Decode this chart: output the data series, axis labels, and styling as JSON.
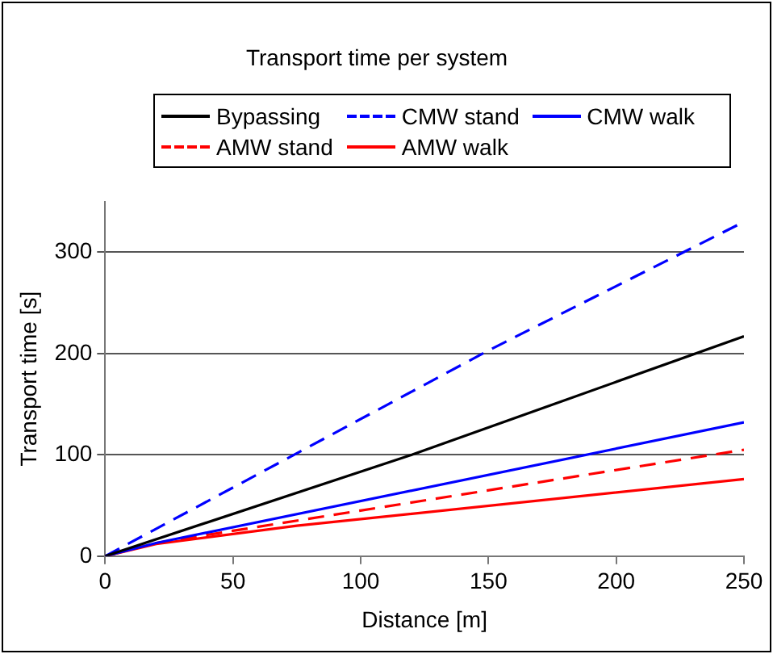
{
  "chart_data": {
    "type": "line",
    "title": "Transport time per system",
    "xlabel": "Distance [m]",
    "ylabel": "Transport time [s]",
    "xlim": [
      0,
      250
    ],
    "xticks": [
      0,
      50,
      100,
      150,
      200,
      250
    ],
    "ylim": [
      0,
      350
    ],
    "yticks": [
      0,
      100,
      200,
      300
    ],
    "grid": "y",
    "legend": "top",
    "marker": "none",
    "series": [
      {
        "name": "Bypassing",
        "color": "#000000",
        "line_style": "solid",
        "x": [
          0,
          120,
          250
        ],
        "values": [
          0,
          100,
          217
        ]
      },
      {
        "name": "CMW stand",
        "color": "#0000ff",
        "line_style": "dashed",
        "x": [
          0,
          150,
          250
        ],
        "values": [
          0,
          203,
          330
        ]
      },
      {
        "name": "CMW walk",
        "color": "#0000ff",
        "line_style": "solid",
        "x": [
          0,
          20,
          250
        ],
        "values": [
          0,
          13,
          132
        ]
      },
      {
        "name": "AMW stand",
        "color": "#ff0000",
        "line_style": "dashed",
        "x": [
          0,
          20,
          250
        ],
        "values": [
          0,
          13,
          105
        ]
      },
      {
        "name": "AMW walk",
        "color": "#ff0000",
        "line_style": "solid",
        "x": [
          0,
          20,
          75,
          250
        ],
        "values": [
          0,
          12,
          30,
          76
        ]
      }
    ]
  }
}
